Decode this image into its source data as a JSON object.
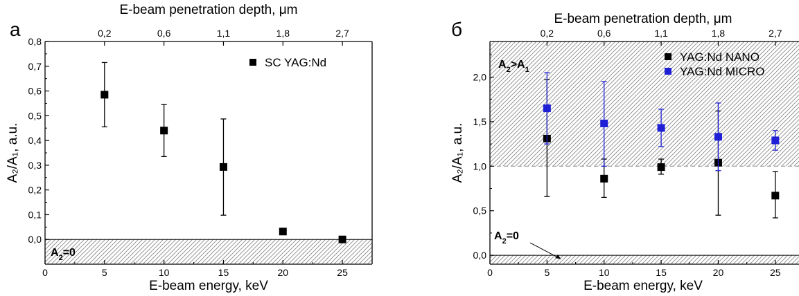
{
  "colors": {
    "axis": "#000000",
    "black_series": "#000000",
    "blue_series": "#1f1fd6",
    "hatch": "#8a8a8a",
    "dashed_line": "#9a9a9a"
  },
  "chart_data": [
    {
      "type": "scatter",
      "panel_label": "а",
      "title": "",
      "xlabel": "E-beam energy, keV",
      "ylabel": "A₂/A₁, a.u.",
      "top_xlabel": "E-beam penetration depth, μm",
      "xlim": [
        0,
        27.5
      ],
      "ylim": [
        -0.1,
        0.8
      ],
      "xticks": [
        0,
        5,
        10,
        15,
        20,
        25
      ],
      "xtick_labels": [
        "0",
        "5",
        "10",
        "15",
        "20",
        "25"
      ],
      "yticks": [
        0.0,
        0.1,
        0.2,
        0.3,
        0.4,
        0.5,
        0.6,
        0.7,
        0.8
      ],
      "ytick_labels": [
        "0,0",
        "0,1",
        "0,2",
        "0,3",
        "0,4",
        "0,5",
        "0,6",
        "0,7",
        "0,8"
      ],
      "top_ticks": [
        5,
        10,
        15,
        20,
        25
      ],
      "top_tick_labels": [
        "0,2",
        "0,6",
        "1,1",
        "1,8",
        "2,7"
      ],
      "hatch_region": [
        -0.1,
        0.0
      ],
      "hatch_label": "A₂=0",
      "legend_position": "top-right",
      "series": [
        {
          "name": "SC YAG:Nd",
          "color": "#000000",
          "x": [
            5,
            10,
            15,
            20,
            25
          ],
          "y": [
            0.585,
            0.44,
            0.293,
            0.032,
            0.0
          ],
          "err_low": [
            0.455,
            0.335,
            0.098,
            null,
            null
          ],
          "err_high": [
            0.715,
            0.545,
            0.487,
            null,
            null
          ]
        }
      ]
    },
    {
      "type": "scatter",
      "panel_label": "б",
      "title": "",
      "xlabel": "E-beam energy, keV",
      "ylabel": "A₂/A₁, a.u.",
      "top_xlabel": "E-beam penetration depth, μm",
      "xlim": [
        0,
        27.5
      ],
      "ylim": [
        -0.1,
        2.4
      ],
      "xticks": [
        0,
        5,
        10,
        15,
        20,
        25
      ],
      "xtick_labels": [
        "0",
        "5",
        "10",
        "15",
        "20",
        "25"
      ],
      "yticks": [
        0.0,
        0.5,
        1.0,
        1.5,
        2.0
      ],
      "ytick_labels": [
        "0,0",
        "0,5",
        "1,0",
        "1,5",
        "2,0"
      ],
      "top_ticks": [
        5,
        10,
        15,
        20,
        25
      ],
      "top_tick_labels": [
        "0,2",
        "0,6",
        "1,1",
        "1,8",
        "2,7"
      ],
      "hatch_regions": [
        [
          -0.1,
          0.0
        ],
        [
          1.0,
          2.4
        ]
      ],
      "dashed_line_y": 1.0,
      "hatch_label_top": "A₂>A₁",
      "hatch_label_bottom": "A₂=0",
      "legend_position": "top-right",
      "series": [
        {
          "name": "YAG:Nd NANO",
          "color": "#000000",
          "x": [
            5,
            10,
            15,
            20,
            25
          ],
          "y": [
            1.31,
            0.86,
            0.99,
            1.04,
            0.67
          ],
          "err_low": [
            0.66,
            0.65,
            0.91,
            0.45,
            0.42
          ],
          "err_high": [
            1.97,
            1.08,
            1.08,
            1.62,
            0.94
          ]
        },
        {
          "name": "YAG:Nd MICRO",
          "color": "#1f1fd6",
          "x": [
            5,
            10,
            15,
            20,
            25
          ],
          "y": [
            1.65,
            1.48,
            1.43,
            1.33,
            1.29
          ],
          "err_low": [
            1.25,
            1.0,
            1.22,
            0.95,
            1.18
          ],
          "err_high": [
            2.05,
            1.95,
            1.64,
            1.71,
            1.4
          ]
        }
      ]
    }
  ]
}
